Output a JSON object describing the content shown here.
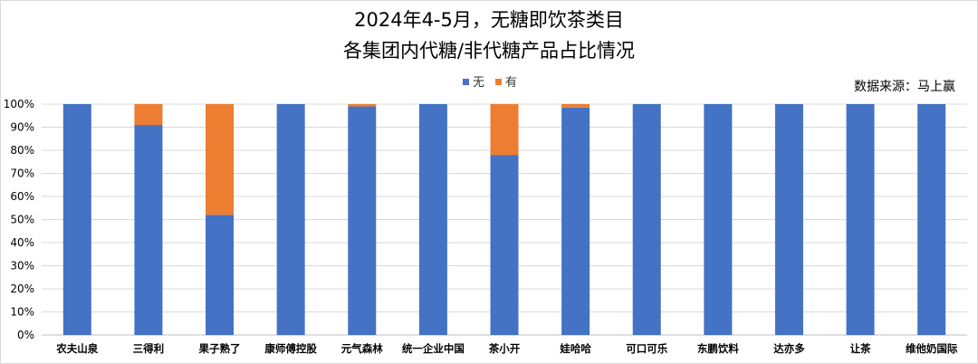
{
  "chart_data": {
    "type": "bar",
    "stacked": true,
    "title": [
      "2024年4-5月，无糖即饮茶类目",
      "各集团内代糖/非代糖产品占比情况"
    ],
    "source": "数据来源：马上赢",
    "legend_position": "top-center",
    "grid": true,
    "ylim": [
      0,
      100
    ],
    "y_ticks": [
      "0%",
      "10%",
      "20%",
      "30%",
      "40%",
      "50%",
      "60%",
      "70%",
      "80%",
      "90%",
      "100%"
    ],
    "categories": [
      "农夫山泉",
      "三得利",
      "果子熟了",
      "康师傅控股",
      "元气森林",
      "统一企业中国",
      "茶小开",
      "娃哈哈",
      "可口可乐",
      "东鹏饮料",
      "达亦多",
      "让茶",
      "维他奶国际"
    ],
    "series": [
      {
        "name": "无",
        "color": "#4472C4",
        "values": [
          100,
          91,
          52,
          100,
          99,
          100,
          78,
          98.5,
          100,
          100,
          100,
          100,
          100
        ]
      },
      {
        "name": "有",
        "color": "#ED7D31",
        "values": [
          0,
          9,
          48,
          0,
          1,
          0,
          22,
          1.5,
          0,
          0,
          0,
          0,
          0
        ]
      }
    ]
  }
}
